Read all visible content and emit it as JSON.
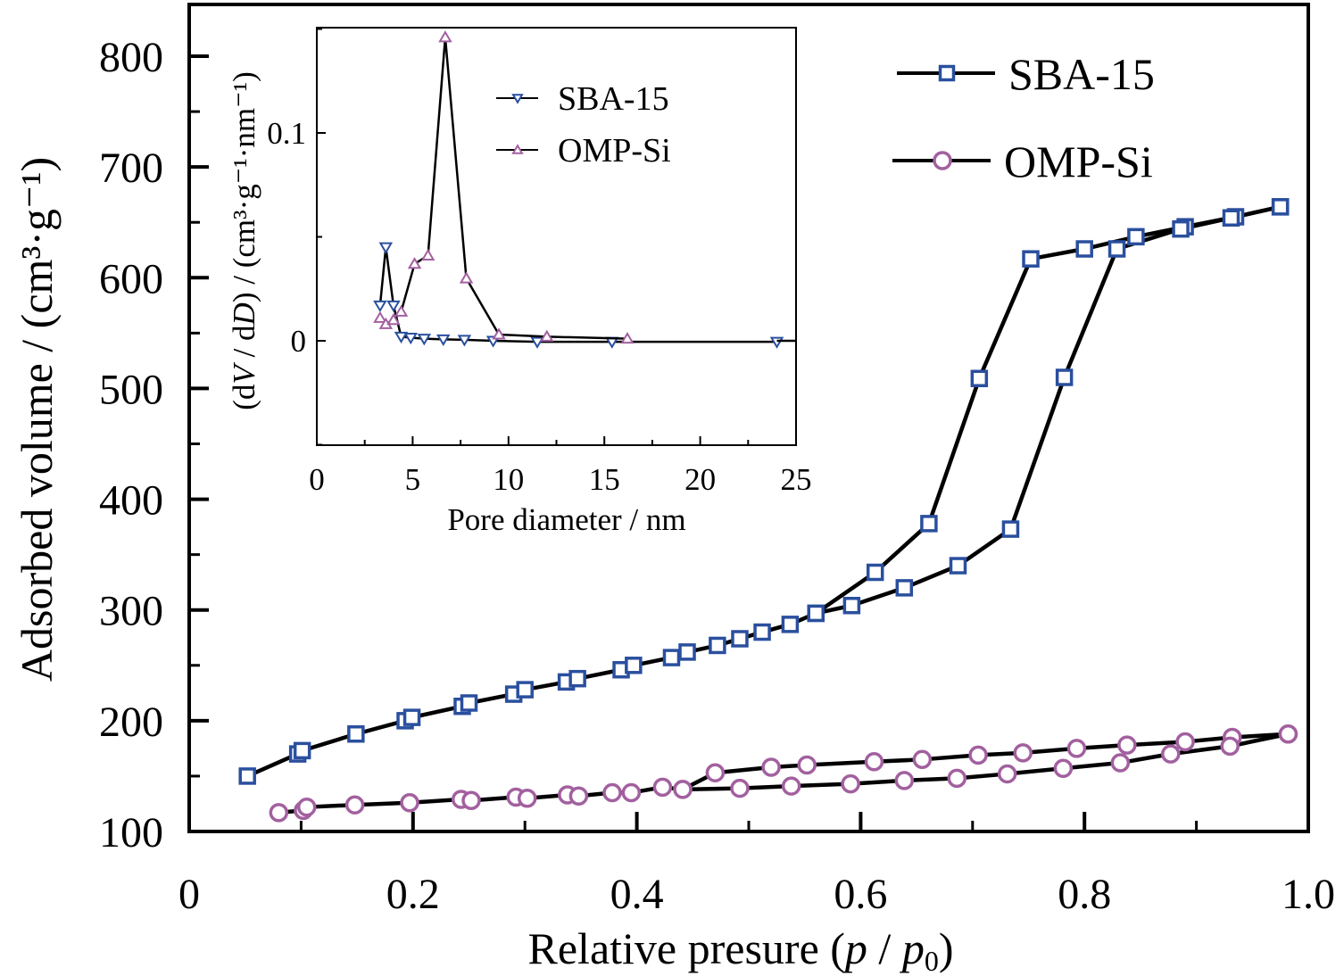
{
  "chart_data": [
    {
      "id": "main",
      "type": "line",
      "title": "",
      "xlabel": {
        "prefix": "Relative presure (",
        "p1": "p",
        "sep": " / ",
        "p2": "p",
        "sub": "0",
        "suffix": ")"
      },
      "ylabel": "Adsorbed volume / (cm³·g⁻¹)",
      "xlim": [
        0,
        1.0
      ],
      "ylim": [
        100,
        850
      ],
      "xticks": [
        0,
        0.2,
        0.4,
        0.6,
        0.8,
        1.0
      ],
      "xtick_labels": [
        "0",
        "0.2",
        "0.4",
        "0.6",
        "0.8",
        "1.0"
      ],
      "xminor": [
        0.1,
        0.3,
        0.5,
        0.7,
        0.9
      ],
      "yticks": [
        100,
        200,
        300,
        400,
        500,
        600,
        700,
        800
      ],
      "ytick_labels": [
        "100",
        "200",
        "300",
        "400",
        "500",
        "600",
        "700",
        "800"
      ],
      "yminor": [
        150,
        250,
        350,
        450,
        550,
        650,
        750
      ],
      "grid": false,
      "legend_position": "top-right",
      "series": [
        {
          "name": "SBA-15",
          "marker": "square",
          "color": "#2a4f9e",
          "branches": [
            {
              "branch": "adsorption",
              "x": [
                0.052,
                0.097,
                0.101,
                0.149,
                0.193,
                0.199,
                0.244,
                0.25,
                0.29,
                0.3,
                0.337,
                0.347,
                0.386,
                0.397,
                0.431,
                0.445,
                0.472,
                0.492,
                0.512,
                0.537,
                0.56,
                0.613,
                0.661,
                0.706,
                0.752,
                0.8,
                0.846,
                0.89,
                0.935,
                0.975
              ],
              "y": [
                150,
                170,
                173,
                188,
                200,
                203,
                213,
                216,
                224,
                228,
                235,
                238,
                246,
                250,
                257,
                262,
                268,
                274,
                280,
                287,
                297,
                334,
                378,
                509,
                617,
                626,
                637,
                646,
                655,
                664
              ]
            },
            {
              "branch": "desorption",
              "x": [
                0.975,
                0.931,
                0.886,
                0.829,
                0.782,
                0.734,
                0.687,
                0.639,
                0.592,
                0.56
              ],
              "y": [
                664,
                654,
                644,
                626,
                510,
                373,
                340,
                320,
                304,
                297
              ]
            }
          ]
        },
        {
          "name": "OMP-Si",
          "marker": "circle",
          "color": "#a2609f",
          "branches": [
            {
              "branch": "adsorption",
              "x": [
                0.08,
                0.102,
                0.105,
                0.148,
                0.197,
                0.243,
                0.252,
                0.292,
                0.302,
                0.338,
                0.348,
                0.378,
                0.395,
                0.423,
                0.441,
                0.47,
                0.52,
                0.552,
                0.612,
                0.655,
                0.705,
                0.745,
                0.793,
                0.838,
                0.89,
                0.932,
                0.982
              ],
              "y": [
                117,
                119,
                122,
                124,
                126,
                129,
                128,
                131,
                130,
                133,
                132,
                135,
                135,
                140,
                138,
                153,
                158,
                160,
                163,
                165,
                169,
                171,
                175,
                178,
                181,
                185,
                188
              ]
            },
            {
              "branch": "desorption",
              "x": [
                0.982,
                0.93,
                0.877,
                0.832,
                0.781,
                0.731,
                0.686,
                0.639,
                0.591,
                0.538,
                0.492,
                0.441
              ],
              "y": [
                188,
                177,
                170,
                162,
                157,
                152,
                148,
                146,
                143,
                141,
                139,
                138
              ]
            }
          ]
        }
      ]
    },
    {
      "id": "inset",
      "type": "line",
      "title": "",
      "xlabel": "Pore diameter / nm",
      "ylabel": {
        "prefix": "(d",
        "V": "V",
        "mid": " / d",
        "D": "D",
        "suffix": ") / (cm³·g⁻¹·nm⁻¹)"
      },
      "xlim": [
        0,
        25
      ],
      "ylim": [
        -0.05,
        0.15
      ],
      "xticks": [
        0,
        5,
        10,
        15,
        20,
        25
      ],
      "xtick_labels": [
        "0",
        "5",
        "10",
        "15",
        "20",
        "25"
      ],
      "xminor": [
        2.5,
        7.5,
        12.5,
        17.5,
        22.5
      ],
      "yticks": [
        0,
        0.1
      ],
      "ytick_labels": [
        "0",
        "0.1"
      ],
      "yminor": [
        -0.05,
        0.05,
        0.15
      ],
      "grid": false,
      "legend_position": "top-center",
      "series": [
        {
          "name": "SBA-15",
          "marker": "triangle-down",
          "color": "#2a4f9e",
          "x": [
            3.3,
            3.6,
            4.0,
            4.4,
            4.9,
            5.6,
            6.6,
            7.7,
            9.2,
            11.5,
            15.4,
            24.0
          ],
          "y": [
            0.017,
            0.045,
            0.017,
            0.002,
            0.0015,
            0.001,
            0.0007,
            0.0005,
            0.0,
            -0.0005,
            -0.0005,
            -0.0005
          ]
        },
        {
          "name": "OMP-Si",
          "marker": "triangle-up",
          "color": "#a2609f",
          "x": [
            3.3,
            3.6,
            4.0,
            4.4,
            5.1,
            5.8,
            6.7,
            7.8,
            9.5,
            12.0,
            16.2
          ],
          "y": [
            0.011,
            0.008,
            0.01,
            0.014,
            0.037,
            0.041,
            0.146,
            0.03,
            0.003,
            0.002,
            0.001
          ]
        }
      ]
    }
  ]
}
